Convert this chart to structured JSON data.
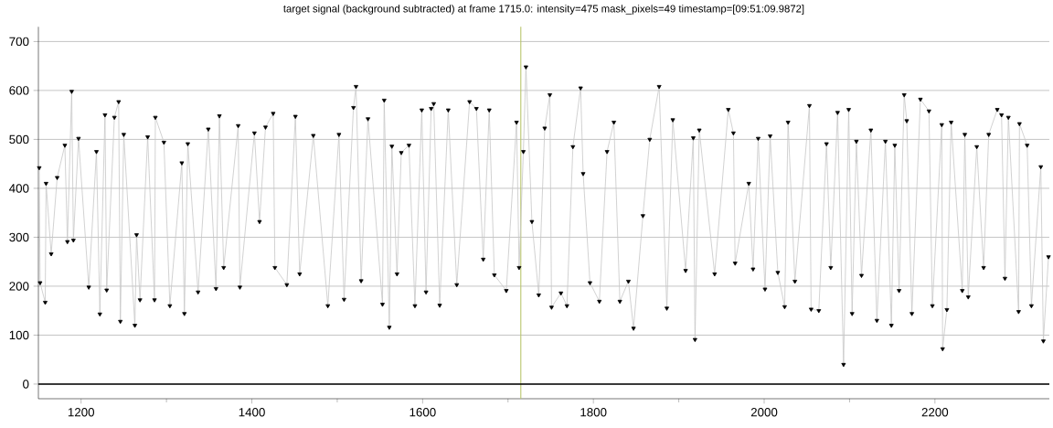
{
  "chart_data": {
    "type": "line",
    "title": "target signal (background subtracted) at frame 1715.0: intensity=475 mask_pixels=49 timestamp=[09:51:09.9872]",
    "x": [
      1151,
      1152,
      1158,
      1159,
      1165,
      1172,
      1181,
      1184,
      1189,
      1191,
      1197,
      1209,
      1218,
      1222,
      1228,
      1230,
      1239,
      1244,
      1246,
      1250,
      1263,
      1265,
      1269,
      1278,
      1286,
      1287,
      1297,
      1304,
      1318,
      1321,
      1325,
      1337,
      1349,
      1358,
      1362,
      1367,
      1384,
      1386,
      1403,
      1409,
      1416,
      1425,
      1427,
      1441,
      1451,
      1456,
      1472,
      1489,
      1502,
      1508,
      1519,
      1522,
      1528,
      1536,
      1553,
      1555,
      1561,
      1564,
      1570,
      1575,
      1584,
      1591,
      1599,
      1604,
      1610,
      1613,
      1620,
      1630,
      1640,
      1655,
      1663,
      1671,
      1678,
      1684,
      1698,
      1710,
      1713,
      1718,
      1721,
      1728,
      1736,
      1743,
      1749,
      1751,
      1762,
      1769,
      1776,
      1785,
      1788,
      1796,
      1807,
      1816,
      1824,
      1831,
      1841,
      1847,
      1858,
      1866,
      1877,
      1886,
      1893,
      1908,
      1917,
      1919,
      1924,
      1942,
      1958,
      1964,
      1966,
      1982,
      1987,
      1993,
      2001,
      2007,
      2016,
      2024,
      2028,
      2036,
      2053,
      2055,
      2064,
      2073,
      2078,
      2086,
      2093,
      2099,
      2103,
      2108,
      2114,
      2125,
      2132,
      2142,
      2149,
      2153,
      2158,
      2164,
      2167,
      2173,
      2183,
      2193,
      2197,
      2208,
      2209,
      2214,
      2219,
      2232,
      2235,
      2239,
      2249,
      2257,
      2263,
      2273,
      2278,
      2282,
      2286,
      2298,
      2299,
      2308,
      2313,
      2324,
      2327,
      2333
    ],
    "series": [
      {
        "color": "#000000",
        "values": [
          442,
          207,
          167,
          410,
          266,
          422,
          488,
          291,
          598,
          294,
          502,
          198,
          475,
          143,
          550,
          192,
          545,
          577,
          128,
          510,
          120,
          305,
          172,
          505,
          172,
          545,
          494,
          160,
          452,
          144,
          491,
          188,
          521,
          195,
          548,
          238,
          528,
          198,
          513,
          332,
          525,
          553,
          238,
          203,
          547,
          225,
          508,
          160,
          510,
          173,
          565,
          608,
          211,
          542,
          163,
          580,
          116,
          486,
          225,
          473,
          488,
          160,
          560,
          188,
          563,
          573,
          161,
          560,
          203,
          577,
          563,
          255,
          560,
          223,
          191,
          535,
          238,
          475,
          648,
          332,
          182,
          523,
          591,
          157,
          186,
          160,
          485,
          605,
          430,
          207,
          169,
          475,
          535,
          169,
          210,
          114,
          344,
          500,
          608,
          155,
          540,
          232,
          503,
          91,
          519,
          225,
          561,
          513,
          247,
          410,
          235,
          502,
          194,
          507,
          228,
          158,
          535,
          210,
          569,
          153,
          150,
          491,
          238,
          555,
          40,
          561,
          144,
          496,
          222,
          519,
          130,
          496,
          120,
          488,
          191,
          591,
          538,
          144,
          582,
          558,
          160,
          530,
          72,
          152,
          535,
          191,
          510,
          178,
          485,
          238,
          510,
          561,
          550,
          216,
          545,
          148,
          532,
          488,
          160,
          444,
          88,
          260
        ]
      }
    ],
    "xlim": [
      1150,
      2334
    ],
    "ylim": [
      -30,
      730
    ],
    "xticks": [
      1200,
      1400,
      1600,
      1800,
      2000,
      2200
    ],
    "yticks": [
      0,
      100,
      200,
      300,
      400,
      500,
      600,
      700
    ],
    "grid": "y",
    "marker": "triangle",
    "ref_lines": [
      {
        "axis": "x",
        "value": 1715,
        "color": "#b8c46a"
      },
      {
        "axis": "y",
        "value": 0,
        "color": "#000000"
      }
    ]
  }
}
